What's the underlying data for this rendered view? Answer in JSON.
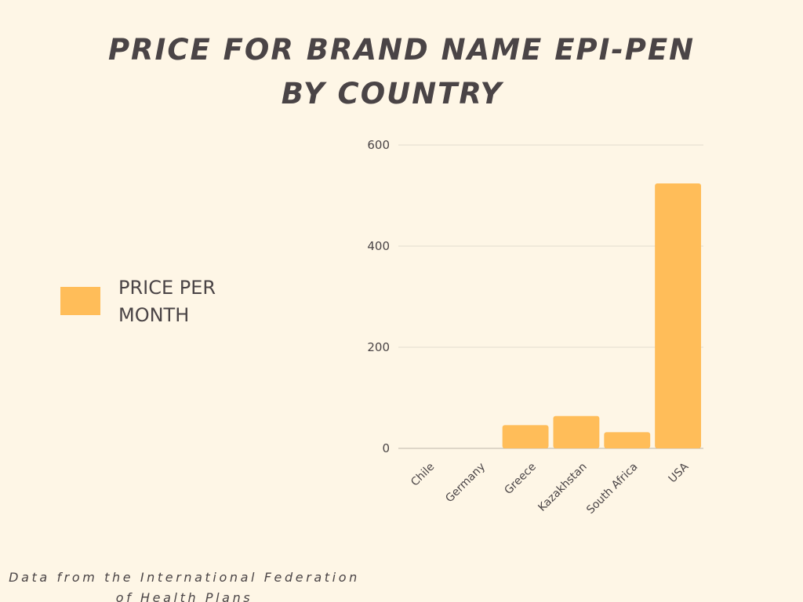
{
  "title": {
    "line1": "PRICE FOR BRAND NAME EPI-PEN",
    "line2": "BY COUNTRY"
  },
  "legend": {
    "label": "PRICE PER MONTH",
    "color": "#ffbd59"
  },
  "footer": {
    "line1": "Data from the International Federation",
    "line2": "of Health Plans"
  },
  "chart_data": {
    "type": "bar",
    "title": "PRICE FOR BRAND NAME EPI-PEN BY COUNTRY",
    "xlabel": "",
    "ylabel": "",
    "categories": [
      "Chile",
      "Germany",
      "Greece",
      "Kazakhstan",
      "South Africa",
      "USA"
    ],
    "series": [
      {
        "name": "PRICE PER MONTH",
        "values": [
          0,
          0,
          46,
          64,
          32,
          524
        ],
        "color": "#ffbd59"
      }
    ],
    "ylim": [
      0,
      600
    ],
    "yticks": [
      0,
      200,
      400,
      600
    ],
    "grid": true,
    "legend_position": "left"
  }
}
